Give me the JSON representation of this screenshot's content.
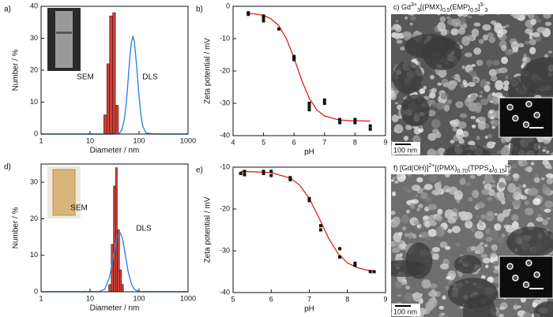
{
  "chart_data": [
    {
      "type": "histogram",
      "label": "a)",
      "xlabel": "Diameter / nm",
      "ylabel": "Number / %",
      "xscale": "log",
      "xlim": [
        1,
        1000
      ],
      "xticks": [
        1,
        10,
        100,
        1000
      ],
      "ylim": [
        0,
        40
      ],
      "yticks": [
        0,
        10,
        20,
        30,
        40
      ],
      "bins": [
        19,
        22,
        25,
        29,
        33,
        38
      ],
      "series": [
        {
          "name": "SEM",
          "color": "#c8423a",
          "values": [
            6,
            22,
            37,
            38,
            9
          ]
        },
        {
          "name": "DLS",
          "color": "#2f86dd",
          "label_color": "#1f2f8f",
          "type": "line",
          "x": [
            1,
            30,
            40,
            45,
            50,
            55,
            60,
            65,
            70,
            75,
            80,
            90,
            100,
            110,
            120,
            140,
            200,
            1000
          ],
          "values": [
            0,
            0,
            0.3,
            1.5,
            4.5,
            9.9,
            17.1,
            24.1,
            28.9,
            30.5,
            29.1,
            20.8,
            11.7,
            5.6,
            2.3,
            0.3,
            0,
            0
          ]
        }
      ]
    },
    {
      "type": "scatter",
      "label": "b)",
      "xlabel": "pH",
      "ylabel": "Zeta potential / mV",
      "xlim": [
        4,
        9
      ],
      "xticks": [
        4,
        5,
        6,
        7,
        8,
        9
      ],
      "ylim": [
        -40,
        0
      ],
      "yticks": [
        0,
        -10,
        -20,
        -30,
        -40
      ],
      "color": "#111111",
      "x": [
        4.5,
        4.5,
        5,
        5,
        5,
        5.5,
        6,
        6,
        6,
        6.5,
        6.5,
        6.5,
        7,
        7,
        7.5,
        7.5,
        8,
        8,
        8.5,
        8.5
      ],
      "values": [
        -2,
        -2.5,
        -3.5,
        -4.5,
        -3,
        -7,
        -16,
        -16.5,
        -15.5,
        -30,
        -32,
        -31,
        -29,
        -30,
        -35,
        -36,
        -35,
        -36,
        -37,
        -38
      ],
      "fit": {
        "color": "#e0201b",
        "x": [
          4.5,
          4.75,
          5,
          5.25,
          5.5,
          5.75,
          6,
          6.25,
          6.5,
          6.75,
          7,
          7.5,
          8,
          8.5
        ],
        "values": [
          -2.2,
          -2.4,
          -2.8,
          -3.9,
          -6,
          -10,
          -16,
          -22.8,
          -28.5,
          -32.1,
          -33.9,
          -35.2,
          -35.4,
          -35.5
        ]
      }
    },
    {
      "type": "histogram",
      "label": "d)",
      "xlabel": "Diameter / nm",
      "ylabel": "Number / %",
      "xscale": "log",
      "xlim": [
        1,
        1000
      ],
      "xticks": [
        1,
        10,
        100,
        1000
      ],
      "ylim": [
        0,
        35
      ],
      "yticks": [
        0,
        10,
        20,
        30
      ],
      "bins": [
        24,
        27,
        30,
        33,
        36,
        40,
        44,
        48
      ],
      "series": [
        {
          "name": "SEM",
          "color": "#c8423a",
          "values": [
            2,
            13,
            29,
            34,
            17,
            6,
            2
          ]
        },
        {
          "name": "DLS",
          "color": "#2f86dd",
          "label_color": "#1f2f8f",
          "type": "line",
          "x": [
            1,
            15,
            20,
            25,
            30,
            35,
            40,
            45,
            50,
            60,
            70,
            80,
            100,
            1000
          ],
          "values": [
            0,
            0,
            0.7,
            4,
            9.8,
            14.8,
            16.5,
            15,
            11.8,
            5.5,
            2.1,
            0.7,
            0,
            0
          ]
        }
      ]
    },
    {
      "type": "scatter",
      "label": "e)",
      "xlabel": "pH",
      "ylabel": "Zeta potential / mV",
      "xlim": [
        5,
        9
      ],
      "xticks": [
        5,
        6,
        7,
        8,
        9
      ],
      "ylim": [
        -40,
        -10
      ],
      "yticks": [
        -10,
        -20,
        -30,
        -40
      ],
      "color": "#111111",
      "x": [
        5.2,
        5.3,
        5.3,
        5.8,
        5.8,
        6,
        6,
        6.5,
        6.5,
        7,
        7,
        7.3,
        7.3,
        7.8,
        7.8,
        8.2,
        8.2,
        8.6,
        8.7
      ],
      "values": [
        -11.5,
        -11.8,
        -11,
        -11.5,
        -11,
        -11,
        -12,
        -12.5,
        -13,
        -17.5,
        -18,
        -24,
        -25,
        -29.5,
        -31.5,
        -33,
        -33.5,
        -35,
        -35
      ],
      "fit": {
        "color": "#e0201b",
        "x": [
          5.2,
          5.5,
          6,
          6.5,
          6.75,
          7,
          7.25,
          7.5,
          7.75,
          8,
          8.25,
          8.5,
          8.7
        ],
        "values": [
          -11,
          -11.1,
          -11.3,
          -12.6,
          -14.3,
          -17.5,
          -22,
          -26.9,
          -30.6,
          -32.9,
          -34,
          -34.6,
          -34.8
        ]
      }
    }
  ],
  "images": [
    {
      "title_parts": [
        {
          "t": "c) Gd"
        },
        {
          "t": "3+",
          "s": "sup"
        },
        {
          "t": "3",
          "s": "sub"
        },
        {
          "t": "[(PMX)"
        },
        {
          "t": "0.5",
          "s": "sub"
        },
        {
          "t": "(EMP)"
        },
        {
          "t": "0.5",
          "s": "sub"
        },
        {
          "t": "]"
        },
        {
          "t": "3-",
          "s": "sup"
        },
        {
          "t": "3",
          "s": "sub"
        }
      ],
      "scale_bar": "100 nm",
      "inset_scale_bar": "100 nm"
    },
    {
      "title_parts": [
        {
          "t": "f) [Gd(OH)]"
        },
        {
          "t": "2+",
          "s": "sup"
        },
        {
          "t": "[(PMX)"
        },
        {
          "t": "0.70",
          "s": "sub"
        },
        {
          "t": "(TPPS"
        },
        {
          "t": "4",
          "s": "sub"
        },
        {
          "t": ")"
        },
        {
          "t": "0.15",
          "s": "sub"
        },
        {
          "t": "]"
        },
        {
          "t": "2-",
          "s": "sup"
        }
      ],
      "scale_bar": "100 nm",
      "inset_scale_bar": "100 nm"
    }
  ]
}
